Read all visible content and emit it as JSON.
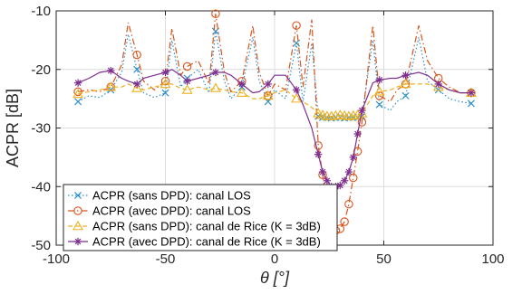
{
  "chart_data": {
    "type": "line",
    "xlabel": "θ [°]",
    "ylabel": "ACPR [dB]",
    "xlim": [
      -100,
      100
    ],
    "ylim": [
      -50,
      -10
    ],
    "x_ticks": [
      "-100",
      "-50",
      "0",
      "50",
      "100"
    ],
    "y_ticks": [
      "-50",
      "-40",
      "-30",
      "-20",
      "-10"
    ],
    "grid": true,
    "legend_position": "bottom-left",
    "series": [
      {
        "name": "ACPR (sans DPD): canal LOS",
        "color": "#2F8FC8",
        "marker": "x",
        "linestyle": "dotted",
        "x": [
          -90,
          -85,
          -80,
          -75,
          -70,
          -67,
          -63,
          -60,
          -55,
          -50,
          -47,
          -43,
          -40,
          -35,
          -30,
          -27,
          -23,
          -20,
          -15,
          -10,
          -7,
          -3,
          0,
          5,
          10,
          13,
          17,
          20,
          22,
          24,
          26,
          28,
          30,
          32,
          34,
          36,
          38,
          40,
          45,
          48,
          53,
          56,
          60,
          66,
          70,
          75,
          80,
          85,
          90
        ],
        "y": [
          -25.5,
          -24.5,
          -24.8,
          -23.5,
          -20.5,
          -14,
          -20,
          -24,
          -24.8,
          -24,
          -15,
          -23,
          -21.5,
          -20,
          -24,
          -13.5,
          -22,
          -25,
          -23,
          -14.5,
          -22,
          -25.5,
          -23.5,
          -25,
          -15.5,
          -25.5,
          -15.5,
          -28,
          -28.2,
          -28.2,
          -28.3,
          -28.2,
          -28.2,
          -28.3,
          -28.2,
          -28.2,
          -28.2,
          -28,
          -15,
          -26,
          -27,
          -25.5,
          -24.5,
          -14.5,
          -22,
          -23.5,
          -25,
          -25.5,
          -25.8
        ]
      },
      {
        "name": "ACPR (avec DPD): canal LOS",
        "color": "#D9541A",
        "marker": "o",
        "linestyle": "dashdot",
        "x": [
          -90,
          -85,
          -80,
          -75,
          -70,
          -67,
          -63,
          -60,
          -55,
          -50,
          -47,
          -43,
          -40,
          -35,
          -30,
          -27,
          -23,
          -20,
          -15,
          -10,
          -7,
          -3,
          0,
          5,
          10,
          13,
          17,
          20,
          22,
          24,
          26,
          28,
          30,
          32,
          34,
          36,
          38,
          40,
          45,
          48,
          53,
          56,
          60,
          66,
          70,
          75,
          80,
          85,
          90
        ],
        "y": [
          -23.8,
          -23.5,
          -23.8,
          -23,
          -19.2,
          -12,
          -17.5,
          -22,
          -23.5,
          -22,
          -13,
          -21,
          -19.5,
          -18.5,
          -22.5,
          -10.5,
          -20.5,
          -23.8,
          -22,
          -12.5,
          -20.5,
          -24.5,
          -22.5,
          -23.5,
          -12.5,
          -23,
          -11.5,
          -33,
          -38,
          -43,
          -46,
          -47.5,
          -47.2,
          -46,
          -43,
          -38.5,
          -34,
          -29,
          -12.5,
          -24.5,
          -25.5,
          -23.5,
          -22.5,
          -12.5,
          -18.5,
          -21.5,
          -23,
          -24,
          -24
        ]
      },
      {
        "name": "ACPR (sans DPD): canal de Rice (K = 3dB)",
        "color": "#EDB120",
        "marker": "^",
        "linestyle": "dashed",
        "x": [
          -90,
          -85,
          -80,
          -75,
          -70,
          -67,
          -63,
          -60,
          -55,
          -50,
          -47,
          -43,
          -40,
          -35,
          -30,
          -27,
          -23,
          -20,
          -15,
          -10,
          -7,
          -3,
          0,
          5,
          10,
          13,
          17,
          20,
          22,
          24,
          26,
          28,
          30,
          32,
          34,
          36,
          38,
          40,
          45,
          48,
          53,
          56,
          60,
          66,
          70,
          75,
          80,
          85,
          90
        ],
        "y": [
          -24.2,
          -23.8,
          -23.5,
          -23,
          -23,
          -22.5,
          -23.2,
          -23.5,
          -23,
          -22.5,
          -22.5,
          -23.2,
          -23.5,
          -23,
          -23.5,
          -23.2,
          -23.5,
          -23.8,
          -24,
          -25,
          -25,
          -24.5,
          -24,
          -23.5,
          -25,
          -25.5,
          -26.5,
          -27.5,
          -27.8,
          -28,
          -28,
          -27.9,
          -27.8,
          -27.9,
          -28,
          -27.9,
          -27.8,
          -27.5,
          -24.5,
          -23.8,
          -23.5,
          -23,
          -22.5,
          -22.5,
          -22.5,
          -23,
          -23.5,
          -24,
          -24
        ]
      },
      {
        "name": "ACPR (avec DPD): canal de Rice (K = 3dB)",
        "color": "#7E2F8E",
        "marker": "*",
        "linestyle": "solid",
        "x": [
          -90,
          -85,
          -80,
          -75,
          -70,
          -67,
          -63,
          -60,
          -55,
          -50,
          -47,
          -43,
          -40,
          -35,
          -30,
          -27,
          -23,
          -20,
          -15,
          -10,
          -7,
          -3,
          0,
          5,
          10,
          13,
          17,
          20,
          22,
          24,
          26,
          28,
          30,
          32,
          34,
          36,
          38,
          40,
          45,
          48,
          53,
          56,
          60,
          66,
          70,
          75,
          80,
          85,
          90
        ],
        "y": [
          -22.3,
          -21.5,
          -20.5,
          -20.2,
          -21.5,
          -22,
          -22.5,
          -21.5,
          -21,
          -20.5,
          -20,
          -21,
          -22,
          -21.5,
          -21,
          -20.5,
          -20.5,
          -21,
          -22.5,
          -24,
          -23.8,
          -22.5,
          -21,
          -21,
          -23.5,
          -26,
          -30,
          -34.5,
          -37.5,
          -39,
          -40,
          -40,
          -39.8,
          -39,
          -37.5,
          -35,
          -31,
          -27,
          -22.3,
          -21.8,
          -21.5,
          -21.5,
          -21,
          -20.5,
          -21,
          -22.5,
          -23.5,
          -24,
          -24
        ]
      }
    ]
  }
}
